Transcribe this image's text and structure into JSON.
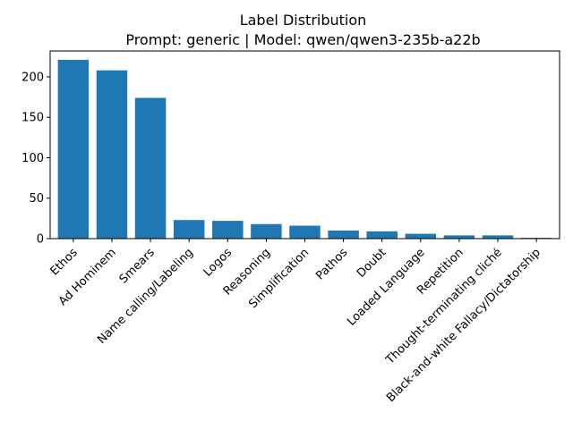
{
  "chart_data": {
    "type": "bar",
    "title": "Label Distribution",
    "subtitle": "Prompt: generic | Model: qwen/qwen3-235b-a22b",
    "xlabel": "",
    "ylabel": "",
    "categories": [
      "Ethos",
      "Ad Hominem",
      "Smears",
      "Name calling/Labeling",
      "Logos",
      "Reasoning",
      "Simplification",
      "Pathos",
      "Doubt",
      "Loaded Language",
      "Repetition",
      "Thought-terminating cliché",
      "Black-and-white Fallacy/Dictatorship"
    ],
    "values": [
      221,
      208,
      174,
      23,
      22,
      18,
      16,
      10,
      9,
      6,
      4,
      4,
      1
    ],
    "ylim": [
      0,
      232
    ],
    "yticks": [
      0,
      50,
      100,
      150,
      200
    ],
    "grid": false,
    "bar_color": "#1f77b4"
  }
}
